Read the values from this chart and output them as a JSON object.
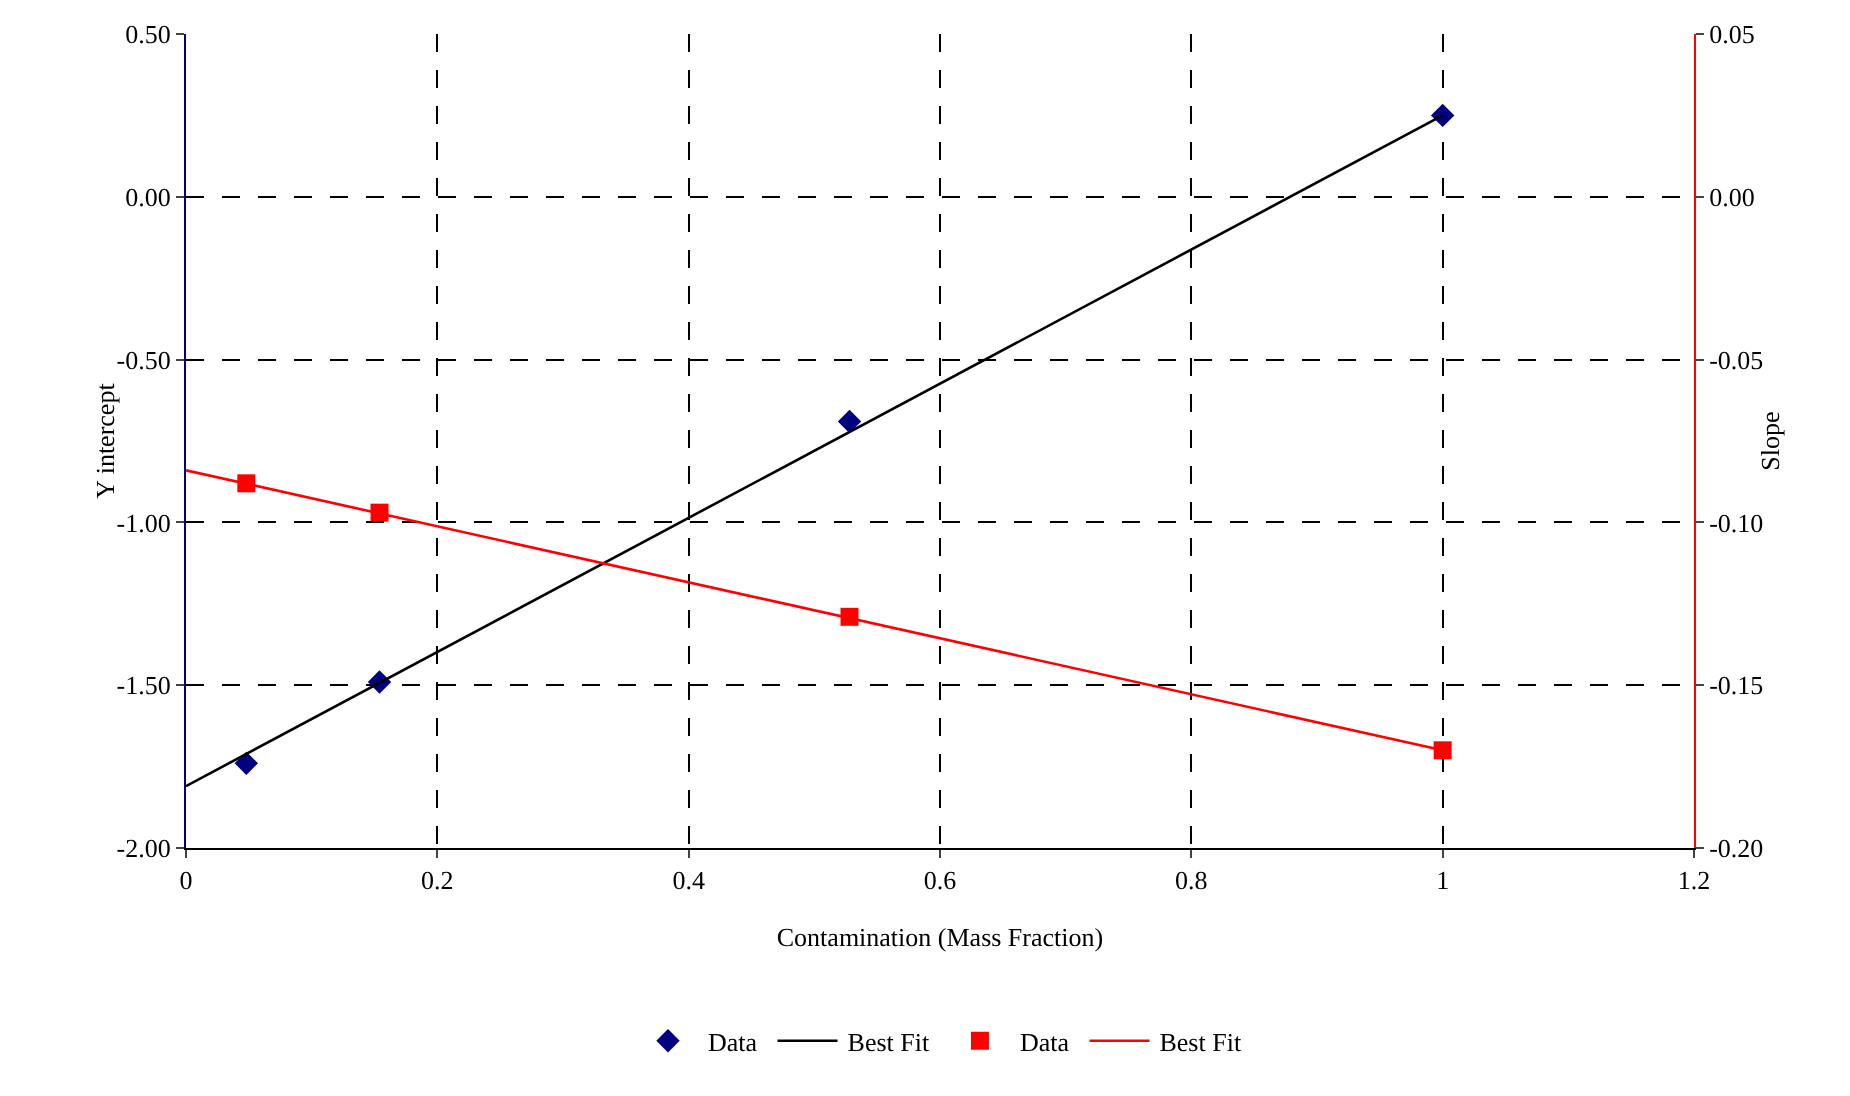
{
  "chart_data": {
    "type": "scatter",
    "xlabel": "Contamination (Mass Fraction)",
    "ylabel": "Y intercept",
    "y2label": "Slope",
    "xlim": [
      0,
      1.2
    ],
    "xticks": [
      0,
      0.2,
      0.4,
      0.6,
      0.8,
      1,
      1.2
    ],
    "ylim": [
      -2,
      0.5
    ],
    "yticks": [
      {
        "value": -2,
        "label": "-2.00"
      },
      {
        "value": -1.5,
        "label": "-1.50"
      },
      {
        "value": -1,
        "label": "-1.00"
      },
      {
        "value": -0.5,
        "label": "-0.50"
      },
      {
        "value": 0,
        "label": "0.00"
      },
      {
        "value": 0.5,
        "label": "0.50"
      }
    ],
    "y2lim": [
      -0.2,
      0.05
    ],
    "y2ticks": [
      {
        "value": -0.2,
        "label": "-0.20"
      },
      {
        "value": -0.15,
        "label": "-0.15"
      },
      {
        "value": -0.1,
        "label": "-0.10"
      },
      {
        "value": -0.05,
        "label": "-0.05"
      },
      {
        "value": 0,
        "label": "0.00"
      },
      {
        "value": 0.05,
        "label": "0.05"
      }
    ],
    "grid": true,
    "legend": "bottom",
    "series": [
      {
        "name": "Data",
        "marker": "diamond",
        "color": "#000080",
        "x": [
          0.048,
          0.154,
          0.528,
          1.0
        ],
        "values": [
          -1.74,
          -1.49,
          -0.69,
          0.25
        ]
      },
      {
        "name": "Best Fit",
        "type": "line",
        "color": "#000000",
        "x": [
          0,
          1.0
        ],
        "values": [
          -1.81,
          0.25
        ]
      },
      {
        "name": "Data",
        "marker": "square",
        "axis": "y2",
        "color": "#ff0000",
        "x": [
          0.048,
          0.154,
          0.528,
          1.0
        ],
        "values": [
          -0.088,
          -0.097,
          -0.129,
          -0.17
        ]
      },
      {
        "name": "Best Fit",
        "type": "line",
        "axis": "y2",
        "color": "#ff0000",
        "x": [
          0,
          1.0
        ],
        "values": [
          -0.084,
          -0.17
        ]
      }
    ]
  }
}
